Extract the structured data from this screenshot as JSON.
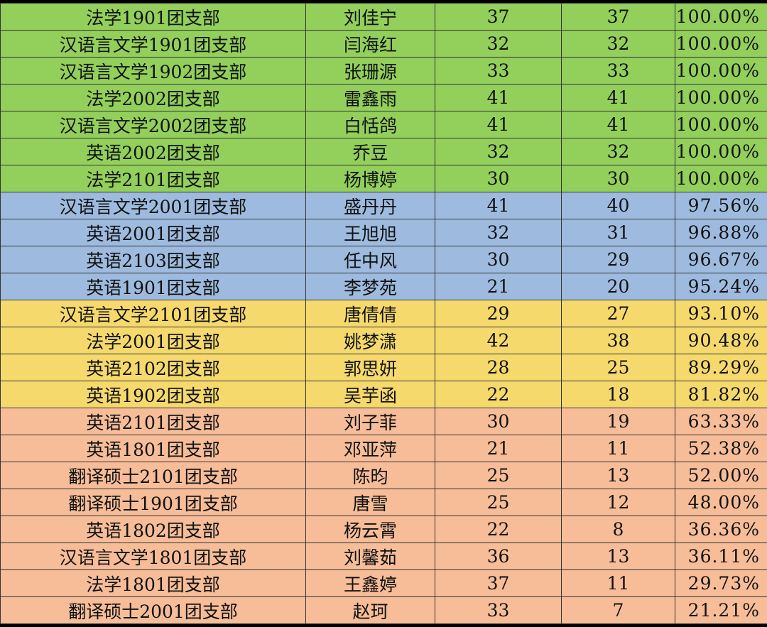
{
  "colors": {
    "green": "#92cf5b",
    "blue": "#9ebbdf",
    "yellow": "#f6d96d",
    "orange": "#f6bd98"
  },
  "rows": [
    {
      "branch": "法学1901团支部",
      "name": "刘佳宁",
      "total": "37",
      "done": "37",
      "rate": "100.00%",
      "group": "green"
    },
    {
      "branch": "汉语言文学1901团支部",
      "name": "闫海红",
      "total": "32",
      "done": "32",
      "rate": "100.00%",
      "group": "green"
    },
    {
      "branch": "汉语言文学1902团支部",
      "name": "张珊源",
      "total": "33",
      "done": "33",
      "rate": "100.00%",
      "group": "green"
    },
    {
      "branch": "法学2002团支部",
      "name": "雷鑫雨",
      "total": "41",
      "done": "41",
      "rate": "100.00%",
      "group": "green"
    },
    {
      "branch": "汉语言文学2002团支部",
      "name": "白恬鸽",
      "total": "41",
      "done": "41",
      "rate": "100.00%",
      "group": "green"
    },
    {
      "branch": "英语2002团支部",
      "name": "乔豆",
      "total": "32",
      "done": "32",
      "rate": "100.00%",
      "group": "green"
    },
    {
      "branch": "法学2101团支部",
      "name": "杨博婷",
      "total": "30",
      "done": "30",
      "rate": "100.00%",
      "group": "green"
    },
    {
      "branch": "汉语言文学2001团支部",
      "name": "盛丹丹",
      "total": "41",
      "done": "40",
      "rate": "97.56%",
      "group": "blue"
    },
    {
      "branch": "英语2001团支部",
      "name": "王旭旭",
      "total": "32",
      "done": "31",
      "rate": "96.88%",
      "group": "blue"
    },
    {
      "branch": "英语2103团支部",
      "name": "任中风",
      "total": "30",
      "done": "29",
      "rate": "96.67%",
      "group": "blue"
    },
    {
      "branch": "英语1901团支部",
      "name": "李梦苑",
      "total": "21",
      "done": "20",
      "rate": "95.24%",
      "group": "blue"
    },
    {
      "branch": "汉语言文学2101团支部",
      "name": "唐倩倩",
      "total": "29",
      "done": "27",
      "rate": "93.10%",
      "group": "yellow"
    },
    {
      "branch": "法学2001团支部",
      "name": "姚梦潇",
      "total": "42",
      "done": "38",
      "rate": "90.48%",
      "group": "yellow"
    },
    {
      "branch": "英语2102团支部",
      "name": "郭思妍",
      "total": "28",
      "done": "25",
      "rate": "89.29%",
      "group": "yellow"
    },
    {
      "branch": "英语1902团支部",
      "name": "吴芋函",
      "total": "22",
      "done": "18",
      "rate": "81.82%",
      "group": "yellow"
    },
    {
      "branch": "英语2101团支部",
      "name": "刘子菲",
      "total": "30",
      "done": "19",
      "rate": "63.33%",
      "group": "orange"
    },
    {
      "branch": "英语1801团支部",
      "name": "邓亚萍",
      "total": "21",
      "done": "11",
      "rate": "52.38%",
      "group": "orange"
    },
    {
      "branch": "翻译硕士2101团支部",
      "name": "陈昀",
      "total": "25",
      "done": "13",
      "rate": "52.00%",
      "group": "orange"
    },
    {
      "branch": "翻译硕士1901团支部",
      "name": "唐雪",
      "total": "25",
      "done": "12",
      "rate": "48.00%",
      "group": "orange"
    },
    {
      "branch": "英语1802团支部",
      "name": "杨云霄",
      "total": "22",
      "done": "8",
      "rate": "36.36%",
      "group": "orange"
    },
    {
      "branch": "汉语言文学1801团支部",
      "name": "刘馨茹",
      "total": "36",
      "done": "13",
      "rate": "36.11%",
      "group": "orange"
    },
    {
      "branch": "法学1801团支部",
      "name": "王鑫婷",
      "total": "37",
      "done": "11",
      "rate": "29.73%",
      "group": "orange"
    },
    {
      "branch": "翻译硕士2001团支部",
      "name": "赵珂",
      "total": "33",
      "done": "7",
      "rate": "21.21%",
      "group": "orange"
    }
  ]
}
